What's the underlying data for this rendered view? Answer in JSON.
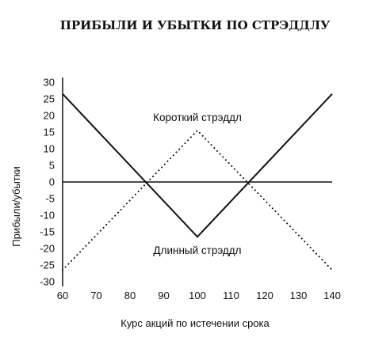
{
  "chart_data": {
    "type": "line",
    "title": "ПРИБЫЛИ И УБЫТКИ ПО СТРЭДДЛУ",
    "xlabel": "Курс акций по истечении срока",
    "ylabel": "Прибыли/убытки",
    "xlim": [
      60,
      140
    ],
    "ylim": [
      -30,
      30
    ],
    "xticks": [
      60,
      70,
      80,
      90,
      100,
      110,
      120,
      130,
      140
    ],
    "yticks": [
      30,
      25,
      20,
      15,
      10,
      5,
      0,
      -5,
      -10,
      -15,
      -20,
      -25,
      -30
    ],
    "grid": false,
    "zero_line": true,
    "series": [
      {
        "name": "Длинный стрэддл",
        "style": "solid",
        "points": [
          [
            60,
            26.5
          ],
          [
            100,
            -16.5
          ],
          [
            140,
            26.5
          ]
        ]
      },
      {
        "name": "Короткий стрэддл",
        "style": "dotted",
        "points": [
          [
            60,
            -26.5
          ],
          [
            100,
            15.5
          ],
          [
            140,
            -26.5
          ]
        ]
      }
    ],
    "annotations": [
      {
        "text": "Короткий стрэддл",
        "x": 100,
        "y": 19.5
      },
      {
        "text": "Длинный стрэддл",
        "x": 100,
        "y": -20.5
      }
    ]
  }
}
